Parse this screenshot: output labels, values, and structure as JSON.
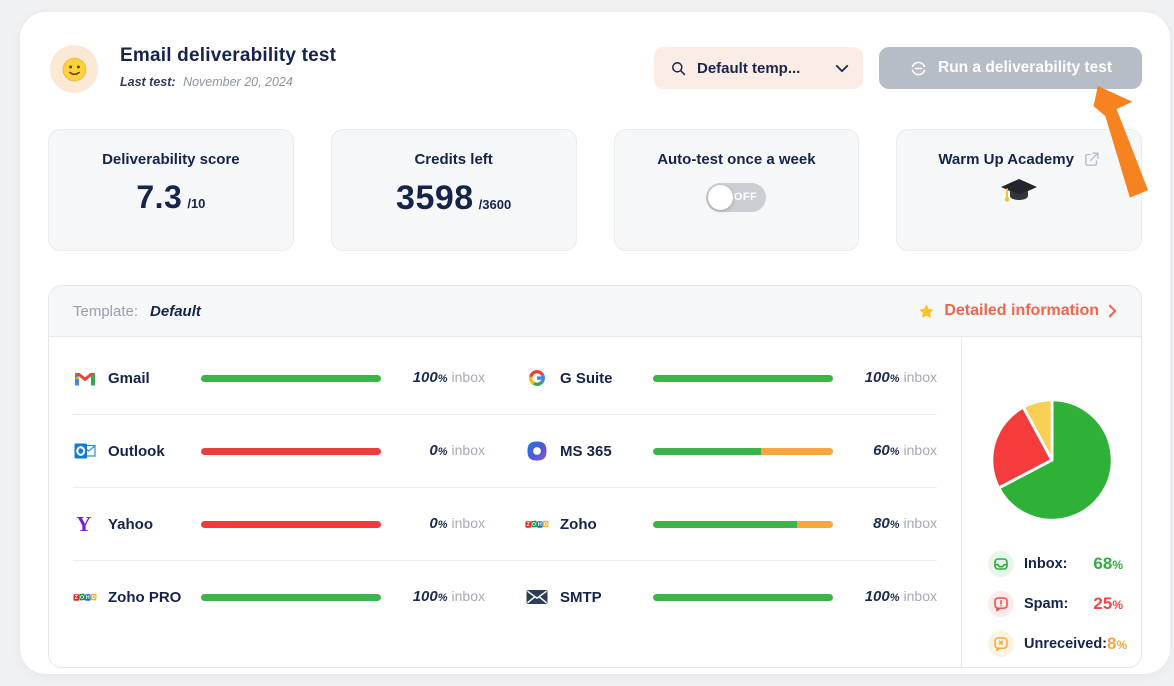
{
  "header": {
    "title": "Email deliverability test",
    "last_test_label": "Last test:",
    "last_test_date": "November 20, 2024",
    "template_select": {
      "value": "Default temp...",
      "icon": "search-icon"
    },
    "run_button": {
      "label": "Run a deliverability test",
      "icon": "scan-target-icon"
    }
  },
  "stats": {
    "score": {
      "title": "Deliverability score",
      "value": "7.3",
      "denominator": "/10"
    },
    "credits": {
      "title": "Credits left",
      "value": "3598",
      "denominator": "/3600"
    },
    "autotest": {
      "title": "Auto-test once a week",
      "toggle_state": "OFF",
      "toggle_on": false
    },
    "academy": {
      "title": "Warm Up Academy",
      "icon": "graduation-cap-icon"
    }
  },
  "panel": {
    "template_label": "Template:",
    "template_value": "Default",
    "detailed_link": "Detailed information",
    "percent_sign": "%",
    "unit_label": "inbox",
    "providers": [
      {
        "name": "Gmail",
        "icon": "gmail-icon",
        "value": "100",
        "segments": [
          {
            "color": "#3bb54a",
            "pct": 100
          }
        ]
      },
      {
        "name": "G Suite",
        "icon": "gsuite-icon",
        "value": "100",
        "segments": [
          {
            "color": "#3bb54a",
            "pct": 100
          }
        ]
      },
      {
        "name": "Outlook",
        "icon": "outlook-icon",
        "value": "0",
        "segments": [
          {
            "color": "#f23b3b",
            "pct": 100
          }
        ]
      },
      {
        "name": "MS 365",
        "icon": "ms365-icon",
        "value": "60",
        "segments": [
          {
            "color": "#3bb54a",
            "pct": 60
          },
          {
            "color": "#f9a63c",
            "pct": 40
          }
        ]
      },
      {
        "name": "Yahoo",
        "icon": "yahoo-icon",
        "value": "0",
        "segments": [
          {
            "color": "#f23b3b",
            "pct": 100
          }
        ]
      },
      {
        "name": "Zoho",
        "icon": "zoho-icon",
        "value": "80",
        "segments": [
          {
            "color": "#3bb54a",
            "pct": 80
          },
          {
            "color": "#f9a63c",
            "pct": 20
          }
        ]
      },
      {
        "name": "Zoho PRO",
        "icon": "zoho-icon",
        "value": "100",
        "segments": [
          {
            "color": "#3bb54a",
            "pct": 100
          }
        ]
      },
      {
        "name": "SMTP",
        "icon": "smtp-icon",
        "value": "100",
        "segments": [
          {
            "color": "#3bb54a",
            "pct": 100
          }
        ]
      }
    ]
  },
  "chart_data": {
    "type": "pie",
    "labels": [
      "Inbox",
      "Spam",
      "Unreceived"
    ],
    "values": [
      68,
      25,
      8
    ],
    "colors": [
      "#2fb137",
      "#f43c3c",
      "#fbce55"
    ],
    "legend_position": "bottom",
    "percent_sign": "%",
    "legend": [
      {
        "label": "Inbox:",
        "value": "68",
        "icon": "inbox-icon",
        "color": "#2fae3c",
        "bg": "#e7f6e9"
      },
      {
        "label": "Spam:",
        "value": "25",
        "icon": "spam-icon",
        "color": "#f44545",
        "bg": "#fdeaea"
      },
      {
        "label": "Unreceived:",
        "value": "8",
        "icon": "unreceived-icon",
        "color": "#f9a63c",
        "bg": "#fdf3e2"
      }
    ]
  }
}
